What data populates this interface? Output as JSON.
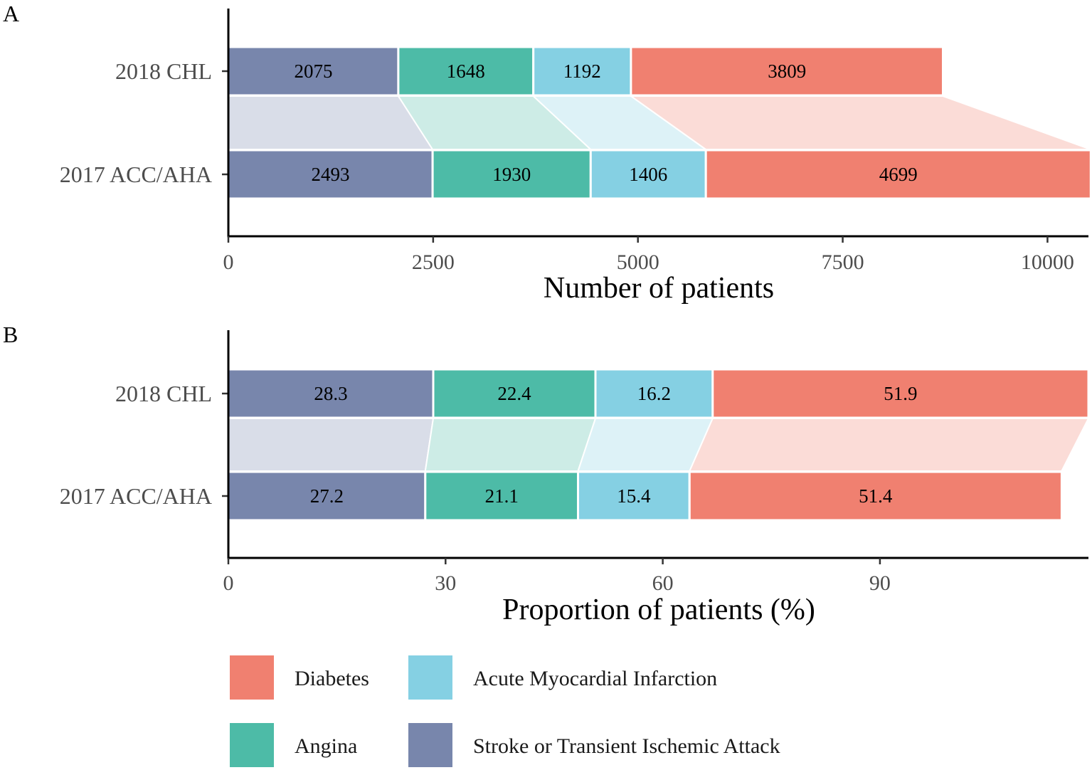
{
  "legend": {
    "items": [
      {
        "name": "Diabetes",
        "color": "#F08070"
      },
      {
        "name": "Acute Myocardial Infarction",
        "color": "#85D0E3"
      },
      {
        "name": "Angina",
        "color": "#4DBBA7"
      },
      {
        "name": "Stroke or Transient Ischemic Attack",
        "color": "#7886AC"
      }
    ]
  },
  "chart_data": [
    {
      "panel": "A",
      "type": "bar",
      "orientation": "horizontal",
      "stacked": true,
      "categories": [
        "2018 CHL",
        "2017 ACC/AHA"
      ],
      "series": [
        {
          "name": "Stroke or Transient Ischemic Attack",
          "values": [
            2075,
            2493
          ]
        },
        {
          "name": "Angina",
          "values": [
            1648,
            1930
          ]
        },
        {
          "name": "Acute Myocardial Infarction",
          "values": [
            1192,
            1406
          ]
        },
        {
          "name": "Diabetes",
          "values": [
            3809,
            4699
          ]
        }
      ],
      "xlabel": "Number of patients",
      "ylabel": "",
      "xlim": [
        0,
        10500
      ],
      "xticks": [
        0,
        2500,
        5000,
        7500,
        10000
      ],
      "xtick_labels": [
        "0",
        "2500",
        "5000",
        "7500",
        "10000"
      ]
    },
    {
      "panel": "B",
      "type": "bar",
      "orientation": "horizontal",
      "stacked": true,
      "categories": [
        "2018 CHL",
        "2017 ACC/AHA"
      ],
      "series": [
        {
          "name": "Stroke or Transient Ischemic Attack",
          "values": [
            28.3,
            27.2
          ]
        },
        {
          "name": "Angina",
          "values": [
            22.4,
            21.1
          ]
        },
        {
          "name": "Acute Myocardial Infarction",
          "values": [
            16.2,
            15.4
          ]
        },
        {
          "name": "Diabetes",
          "values": [
            51.9,
            51.4
          ]
        }
      ],
      "xlabel": "Proportion of patients (%)",
      "ylabel": "",
      "xlim": [
        0,
        118.8
      ],
      "xticks": [
        0,
        30,
        60,
        90
      ],
      "xtick_labels": [
        "0",
        "30",
        "60",
        "90"
      ]
    }
  ]
}
